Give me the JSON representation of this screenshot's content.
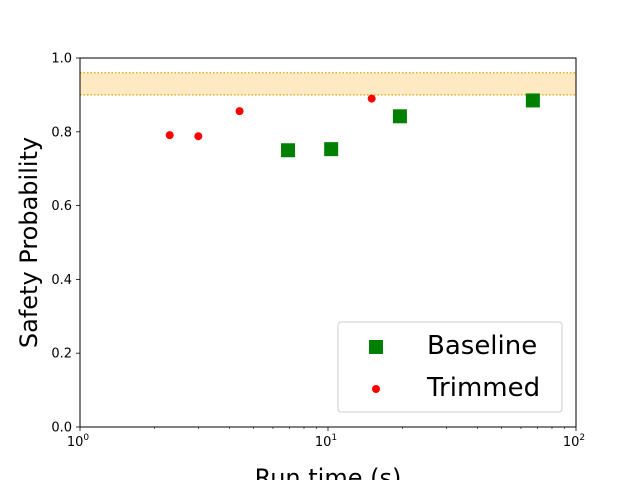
{
  "chart_data": {
    "type": "scatter",
    "title": "",
    "xlabel": "Run time (s)",
    "ylabel": "Safety Probability",
    "xscale": "log",
    "xlim": [
      1,
      100
    ],
    "ylim": [
      0.0,
      1.0
    ],
    "x_ticks": [
      {
        "value": 1,
        "base": "10",
        "exp": "0"
      },
      {
        "value": 10,
        "base": "10",
        "exp": "1"
      },
      {
        "value": 100,
        "base": "10",
        "exp": "2"
      }
    ],
    "y_ticks": [
      {
        "value": 0.0,
        "label": "0.0"
      },
      {
        "value": 0.2,
        "label": "0.2"
      },
      {
        "value": 0.4,
        "label": "0.4"
      },
      {
        "value": 0.6,
        "label": "0.6"
      },
      {
        "value": 0.8,
        "label": "0.8"
      },
      {
        "value": 1.0,
        "label": "1.0"
      }
    ],
    "band": {
      "y_low": 0.9,
      "y_high": 0.96,
      "fill_color": "#ffe9c2",
      "line_color": "#e8a000"
    },
    "series": [
      {
        "name": "Baseline",
        "marker": "square",
        "color": "#008000",
        "points": [
          {
            "x": 6.9,
            "y": 0.75
          },
          {
            "x": 10.3,
            "y": 0.753
          },
          {
            "x": 19.5,
            "y": 0.842
          },
          {
            "x": 67.0,
            "y": 0.885
          }
        ]
      },
      {
        "name": "Trimmed",
        "marker": "circle",
        "color": "#ff0000",
        "points": [
          {
            "x": 2.3,
            "y": 0.791
          },
          {
            "x": 3.0,
            "y": 0.788
          },
          {
            "x": 4.4,
            "y": 0.856
          },
          {
            "x": 15.0,
            "y": 0.89
          }
        ]
      }
    ],
    "legend": {
      "placement": "lower-right"
    },
    "grid": false
  }
}
